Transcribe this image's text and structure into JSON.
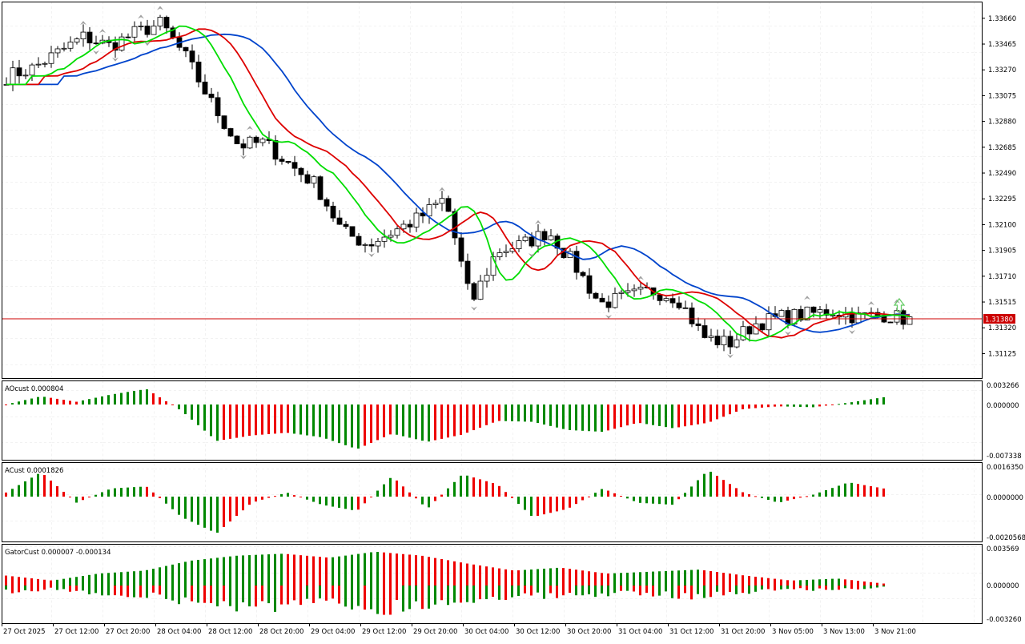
{
  "main": {
    "price_ticks": [
      "1.33660",
      "1.33465",
      "1.33270",
      "1.33075",
      "1.32880",
      "1.32685",
      "1.32490",
      "1.32295",
      "1.32100",
      "1.31905",
      "1.31710",
      "1.31515",
      "1.31320",
      "1.31125"
    ],
    "current_price": "1.31380",
    "price_range": [
      1.3094,
      1.3378
    ],
    "colors": {
      "bull": "#ffffff",
      "bear": "#000000",
      "lips": "#00dd00",
      "teeth": "#dd0000",
      "jaw": "#0044cc",
      "price_line": "#cc0000",
      "fractal": "#a0a0a0",
      "signal": "#66cc66"
    }
  },
  "panels": {
    "ao": {
      "label": "AOcust 0.000804",
      "ticks": [
        "0.003266",
        "0.000000",
        "-0.007338"
      ],
      "range": [
        -0.007338,
        0.003266
      ]
    },
    "ac": {
      "label": "ACust 0.0001826",
      "ticks": [
        "0.0016350",
        "0.0000000",
        "-0.0020568"
      ],
      "range": [
        -0.0020568,
        0.001635
      ]
    },
    "gator": {
      "label": "GatorCust 0.000007 -0.000134",
      "ticks": [
        "0.003569",
        "0.000000",
        "-0.003260"
      ],
      "range": [
        -0.00326,
        0.003569
      ]
    }
  },
  "time_axis": [
    "27 Oct 2025",
    "27 Oct 12:00",
    "27 Oct 20:00",
    "28 Oct 04:00",
    "28 Oct 12:00",
    "28 Oct 20:00",
    "29 Oct 04:00",
    "29 Oct 12:00",
    "29 Oct 20:00",
    "30 Oct 04:00",
    "30 Oct 12:00",
    "30 Oct 20:00",
    "31 Oct 04:00",
    "31 Oct 12:00",
    "31 Oct 20:00",
    "3 Nov 05:00",
    "3 Nov 13:00",
    "3 Nov 21:00"
  ],
  "chart_data": {
    "type": "candlestick",
    "series": [
      {
        "name": "close_profile",
        "values": [
          1.3322,
          1.3328,
          1.334,
          1.3352,
          1.3345,
          1.3355,
          1.3362,
          1.3335,
          1.33,
          1.327,
          1.3272,
          1.3255,
          1.324,
          1.3205,
          1.3195,
          1.3205,
          1.3215,
          1.323,
          1.315,
          1.319,
          1.3195,
          1.3205,
          1.318,
          1.315,
          1.3155,
          1.316,
          1.3155,
          1.3125,
          1.312,
          1.3135,
          1.314,
          1.3142,
          1.3145,
          1.314,
          1.3142,
          1.3138
        ]
      },
      {
        "name": "AOcust",
        "values": [
          0.0,
          0.0009,
          0.0003,
          0.0011,
          0.0017,
          -0.0007,
          -0.004,
          -0.0034,
          -0.0031,
          -0.0036,
          -0.0049,
          -0.0032,
          -0.0041,
          -0.0033,
          -0.0018,
          -0.0019,
          -0.0028,
          -0.003,
          -0.002,
          -0.0026,
          -0.002,
          -0.0005,
          -0.0002,
          -0.0003,
          0.0002,
          0.0008
        ]
      },
      {
        "name": "ACust",
        "values": [
          0.0002,
          0.0012,
          -0.0003,
          0.0004,
          0.0005,
          -0.001,
          -0.0018,
          -0.0003,
          0.0002,
          -0.0004,
          -0.0007,
          0.001,
          -0.0006,
          0.0011,
          0.0006,
          -0.001,
          -0.0006,
          0.0004,
          -0.0003,
          -0.0004,
          0.0013,
          0.0002,
          -0.0003,
          0.0001,
          0.0007,
          0.0004
        ]
      },
      {
        "name": "GatorCust",
        "values": [
          0.001,
          0.0005,
          0.0012,
          0.0015,
          0.0025,
          0.003,
          0.0032,
          0.0028,
          0.0034,
          0.003,
          0.0022,
          0.0015,
          0.0018,
          0.0012,
          0.0014,
          0.0016,
          0.001,
          0.0005,
          0.0007,
          0.0002
        ]
      }
    ]
  }
}
